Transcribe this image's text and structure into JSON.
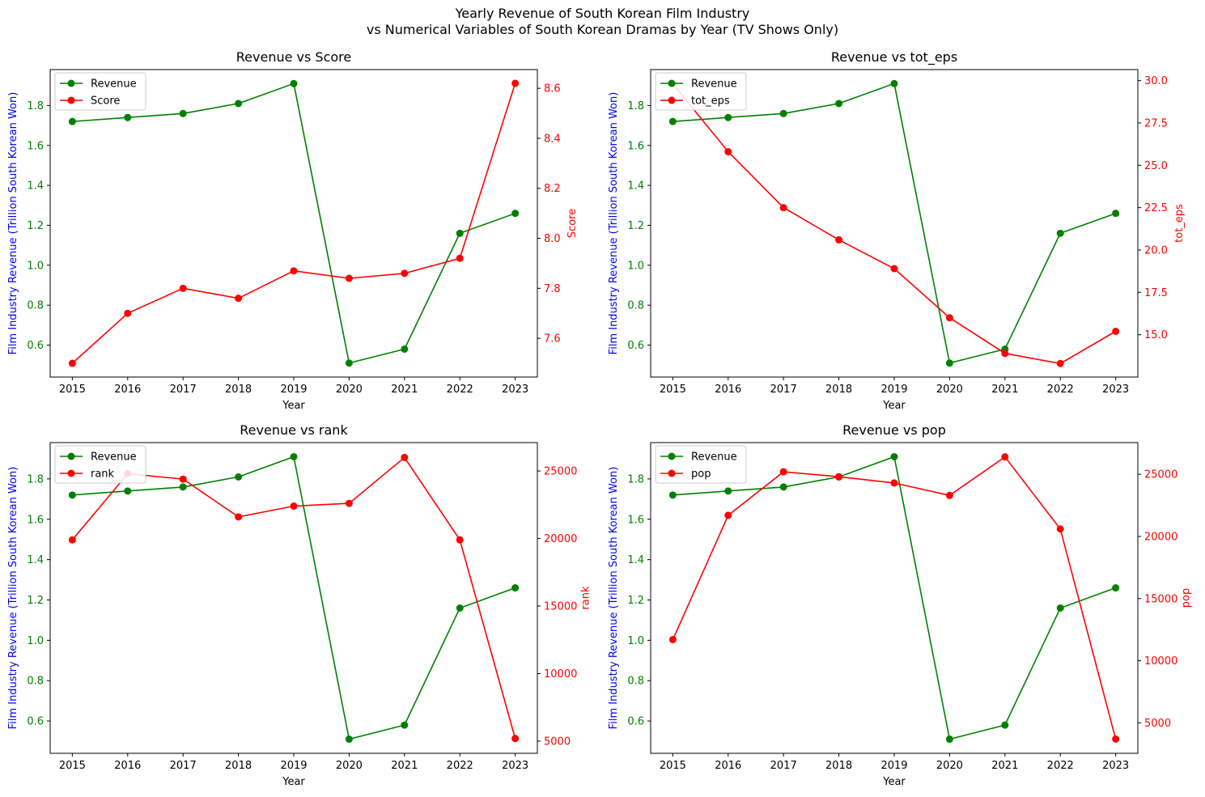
{
  "suptitle": {
    "line1": "Yearly Revenue of South Korean Film Industry",
    "line2": "vs Numerical Variables of South Korean Dramas by Year (TV Shows Only)"
  },
  "colors": {
    "revenue": "#008000",
    "secondary": "#ff0000",
    "left_axis_label": "#0000ff",
    "frame": "#000000"
  },
  "chart_data": [
    {
      "type": "line",
      "title": "Revenue vs Score",
      "xlabel": "Year",
      "ylabel_left": "Film Industry Revenue (Trillion South Korean Won)",
      "ylabel_right": "Score",
      "x": [
        2015,
        2016,
        2017,
        2018,
        2019,
        2020,
        2021,
        2022,
        2023
      ],
      "x_ticks": [
        "2015",
        "2016",
        "2017",
        "2018",
        "2019",
        "2020",
        "2021",
        "2022",
        "2023"
      ],
      "ylim_left": [
        0.44,
        1.98
      ],
      "yticks_left": [
        "0.6",
        "0.8",
        "1.0",
        "1.2",
        "1.4",
        "1.6",
        "1.8"
      ],
      "ylim_right": [
        7.445,
        8.675
      ],
      "yticks_right": [
        "7.6",
        "7.8",
        "8.0",
        "8.2",
        "8.4",
        "8.6"
      ],
      "yticks_right_values": [
        7.6,
        7.8,
        8.0,
        8.2,
        8.4,
        8.6
      ],
      "series": [
        {
          "name": "Revenue",
          "axis": "left",
          "values": [
            1.72,
            1.74,
            1.76,
            1.81,
            1.91,
            0.51,
            0.58,
            1.16,
            1.26
          ]
        },
        {
          "name": "Score",
          "axis": "right",
          "values": [
            7.5,
            7.7,
            7.8,
            7.76,
            7.87,
            7.84,
            7.86,
            7.92,
            8.62
          ]
        }
      ],
      "legend": "upper left",
      "grid": false
    },
    {
      "type": "line",
      "title": "Revenue vs tot_eps",
      "xlabel": "Year",
      "ylabel_left": "Film Industry Revenue (Trillion South Korean Won)",
      "ylabel_right": "tot_eps",
      "x": [
        2015,
        2016,
        2017,
        2018,
        2019,
        2020,
        2021,
        2022,
        2023
      ],
      "x_ticks": [
        "2015",
        "2016",
        "2017",
        "2018",
        "2019",
        "2020",
        "2021",
        "2022",
        "2023"
      ],
      "ylim_left": [
        0.44,
        1.98
      ],
      "yticks_left": [
        "0.6",
        "0.8",
        "1.0",
        "1.2",
        "1.4",
        "1.6",
        "1.8"
      ],
      "ylim_right": [
        12.5,
        30.65
      ],
      "yticks_right": [
        "15.0",
        "17.5",
        "20.0",
        "22.5",
        "25.0",
        "27.5",
        "30.0"
      ],
      "yticks_right_values": [
        15.0,
        17.5,
        20.0,
        22.5,
        25.0,
        27.5,
        30.0
      ],
      "series": [
        {
          "name": "Revenue",
          "axis": "left",
          "values": [
            1.72,
            1.74,
            1.76,
            1.81,
            1.91,
            0.51,
            0.58,
            1.16,
            1.26
          ]
        },
        {
          "name": "tot_eps",
          "axis": "right",
          "values": [
            29.8,
            25.8,
            22.5,
            20.6,
            18.9,
            16.0,
            13.9,
            13.3,
            15.2
          ]
        }
      ],
      "legend": "upper left",
      "grid": false
    },
    {
      "type": "line",
      "title": "Revenue vs rank",
      "xlabel": "Year",
      "ylabel_left": "Film Industry Revenue (Trillion South Korean Won)",
      "ylabel_right": "rank",
      "x": [
        2015,
        2016,
        2017,
        2018,
        2019,
        2020,
        2021,
        2022,
        2023
      ],
      "x_ticks": [
        "2015",
        "2016",
        "2017",
        "2018",
        "2019",
        "2020",
        "2021",
        "2022",
        "2023"
      ],
      "ylim_left": [
        0.44,
        1.98
      ],
      "yticks_left": [
        "0.6",
        "0.8",
        "1.0",
        "1.2",
        "1.4",
        "1.6",
        "1.8"
      ],
      "ylim_right": [
        4100,
        27100
      ],
      "yticks_right": [
        "5000",
        "10000",
        "15000",
        "20000",
        "25000"
      ],
      "yticks_right_values": [
        5000,
        10000,
        15000,
        20000,
        25000
      ],
      "series": [
        {
          "name": "Revenue",
          "axis": "left",
          "values": [
            1.72,
            1.74,
            1.76,
            1.81,
            1.91,
            0.51,
            0.58,
            1.16,
            1.26
          ]
        },
        {
          "name": "rank",
          "axis": "right",
          "values": [
            19900,
            24800,
            24400,
            21600,
            22400,
            22600,
            26000,
            19900,
            5200
          ]
        }
      ],
      "legend": "upper left",
      "grid": false
    },
    {
      "type": "line",
      "title": "Revenue vs pop",
      "xlabel": "Year",
      "ylabel_left": "Film Industry Revenue (Trillion South Korean Won)",
      "ylabel_right": "pop",
      "x": [
        2015,
        2016,
        2017,
        2018,
        2019,
        2020,
        2021,
        2022,
        2023
      ],
      "x_ticks": [
        "2015",
        "2016",
        "2017",
        "2018",
        "2019",
        "2020",
        "2021",
        "2022",
        "2023"
      ],
      "ylim_left": [
        0.44,
        1.98
      ],
      "yticks_left": [
        "0.6",
        "0.8",
        "1.0",
        "1.2",
        "1.4",
        "1.6",
        "1.8"
      ],
      "ylim_right": [
        2550,
        27550
      ],
      "yticks_right": [
        "5000",
        "10000",
        "15000",
        "20000",
        "25000"
      ],
      "yticks_right_values": [
        5000,
        10000,
        15000,
        20000,
        25000
      ],
      "series": [
        {
          "name": "Revenue",
          "axis": "left",
          "values": [
            1.72,
            1.74,
            1.76,
            1.81,
            1.91,
            0.51,
            0.58,
            1.16,
            1.26
          ]
        },
        {
          "name": "pop",
          "axis": "right",
          "values": [
            11700,
            21700,
            25200,
            24800,
            24300,
            23300,
            26400,
            20600,
            3700
          ]
        }
      ],
      "legend": "upper left",
      "grid": false
    }
  ]
}
